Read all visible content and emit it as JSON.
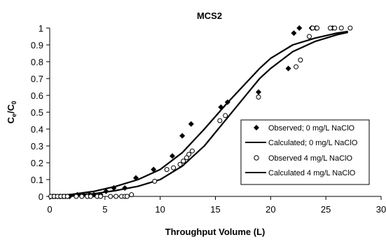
{
  "chart_data": {
    "type": "scatter",
    "title": "MCS2",
    "xlabel": "Throughput Volume (L)",
    "ylabel_main": "C",
    "ylabel_sub1": "e",
    "ylabel_mid": "/C",
    "ylabel_sub2": "0",
    "xlim": [
      0,
      30
    ],
    "ylim": [
      0,
      1
    ],
    "xticks": [
      "0",
      "5",
      "10",
      "15",
      "20",
      "25",
      "30"
    ],
    "yticks": [
      "0",
      "0.1",
      "0.2",
      "0.3",
      "0.4",
      "0.5",
      "0.6",
      "0.7",
      "0.8",
      "0.9",
      "1"
    ],
    "grid": false,
    "legend_position": "right",
    "series": [
      {
        "name": "Observed; 0 mg/L NaClO",
        "kind": "points",
        "marker": "diamond",
        "color": "#000000",
        "points": [
          [
            0.1,
            0
          ],
          [
            0.3,
            0
          ],
          [
            0.5,
            0
          ],
          [
            0.7,
            0
          ],
          [
            0.9,
            0
          ],
          [
            1.0,
            0
          ],
          [
            1.2,
            0
          ],
          [
            1.4,
            0
          ],
          [
            1.6,
            0
          ],
          [
            1.8,
            0
          ],
          [
            2.5,
            0.01
          ],
          [
            3.0,
            0.01
          ],
          [
            3.6,
            0.01
          ],
          [
            4.0,
            0.01
          ],
          [
            4.6,
            0.01
          ],
          [
            5.1,
            0.03
          ],
          [
            5.8,
            0.05
          ],
          [
            6.8,
            0.05
          ],
          [
            7.8,
            0.11
          ],
          [
            9.4,
            0.16
          ],
          [
            11.1,
            0.24
          ],
          [
            12.0,
            0.36
          ],
          [
            12.8,
            0.43
          ],
          [
            15.5,
            0.53
          ],
          [
            16.1,
            0.56
          ],
          [
            18.9,
            0.62
          ],
          [
            21.6,
            0.76
          ],
          [
            22.1,
            0.97
          ],
          [
            22.6,
            1.0
          ],
          [
            23.7,
            1.0
          ],
          [
            24.1,
            1.0
          ],
          [
            25.6,
            1.0
          ]
        ]
      },
      {
        "name": "Calculated; 0 mg/L NaClO",
        "kind": "line",
        "color": "#000000",
        "points": [
          [
            0,
            0
          ],
          [
            2,
            0.012
          ],
          [
            4,
            0.03
          ],
          [
            6,
            0.06
          ],
          [
            8,
            0.1
          ],
          [
            10,
            0.16
          ],
          [
            12,
            0.26
          ],
          [
            14,
            0.4
          ],
          [
            16,
            0.55
          ],
          [
            18,
            0.69
          ],
          [
            19,
            0.76
          ],
          [
            20,
            0.82
          ],
          [
            22,
            0.9
          ],
          [
            24,
            0.94
          ],
          [
            26,
            0.97
          ],
          [
            27,
            0.98
          ]
        ]
      },
      {
        "name": "Observed 4 mg/L NaClO",
        "kind": "points",
        "marker": "circle",
        "color": "#000000",
        "points": [
          [
            0.1,
            0
          ],
          [
            0.4,
            0
          ],
          [
            0.7,
            0
          ],
          [
            1.0,
            0
          ],
          [
            1.3,
            0
          ],
          [
            1.6,
            0
          ],
          [
            2.4,
            0
          ],
          [
            2.9,
            0
          ],
          [
            3.4,
            0
          ],
          [
            3.7,
            0
          ],
          [
            4.3,
            0
          ],
          [
            4.6,
            0
          ],
          [
            5.5,
            0
          ],
          [
            6.0,
            0
          ],
          [
            6.5,
            0
          ],
          [
            6.8,
            0
          ],
          [
            7.0,
            0
          ],
          [
            7.4,
            0.01
          ],
          [
            9.5,
            0.09
          ],
          [
            10.6,
            0.16
          ],
          [
            11.2,
            0.17
          ],
          [
            11.8,
            0.19
          ],
          [
            12.1,
            0.21
          ],
          [
            12.4,
            0.23
          ],
          [
            12.6,
            0.25
          ],
          [
            12.9,
            0.27
          ],
          [
            15.4,
            0.45
          ],
          [
            15.9,
            0.48
          ],
          [
            18.9,
            0.59
          ],
          [
            22.3,
            0.77
          ],
          [
            22.7,
            0.81
          ],
          [
            23.5,
            0.95
          ],
          [
            23.8,
            1.0
          ],
          [
            24.2,
            1.0
          ],
          [
            25.4,
            1.0
          ],
          [
            25.8,
            1.0
          ],
          [
            26.4,
            1.0
          ],
          [
            27.2,
            1.0
          ]
        ]
      },
      {
        "name": "Calculated 4 mg/L NaClO",
        "kind": "line",
        "color": "#000000",
        "points": [
          [
            0,
            0
          ],
          [
            2,
            0.006
          ],
          [
            4,
            0.016
          ],
          [
            6,
            0.035
          ],
          [
            8,
            0.06
          ],
          [
            10,
            0.1
          ],
          [
            12,
            0.18
          ],
          [
            14,
            0.3
          ],
          [
            16,
            0.46
          ],
          [
            18,
            0.62
          ],
          [
            19,
            0.7
          ],
          [
            20,
            0.76
          ],
          [
            22,
            0.86
          ],
          [
            24,
            0.92
          ],
          [
            26,
            0.96
          ],
          [
            27,
            0.975
          ]
        ]
      }
    ]
  }
}
